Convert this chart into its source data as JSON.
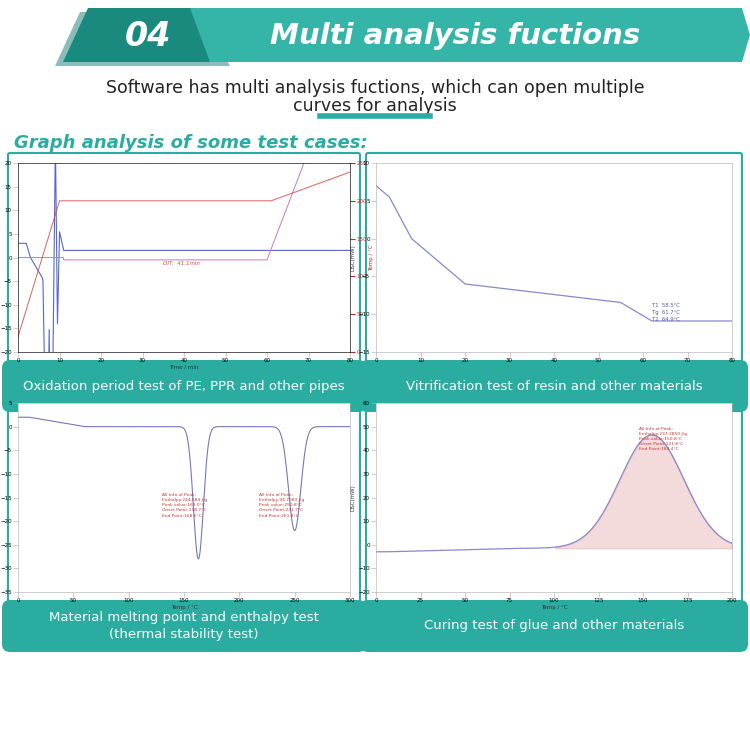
{
  "title_number": "04",
  "title_text": "Multi analysis fuctions",
  "subtitle_line1": "Software has multi analysis fuctions, which can open multiple",
  "subtitle_line2": "curves for analysis",
  "section_label": "Graph analysis of some test cases:",
  "teal": "#2aada0",
  "teal_dark": "#1a8a7e",
  "teal_mid": "#35b5a8",
  "white": "#ffffff",
  "dark_text": "#222222",
  "caption1": "Oxidation period test of PE, PPR and other pipes",
  "caption2": "Vitrification test of resin and other materials",
  "caption3": "Material melting point and enthalpy test\n(thermal stability test)",
  "caption4": "Curing test of glue and other materials"
}
